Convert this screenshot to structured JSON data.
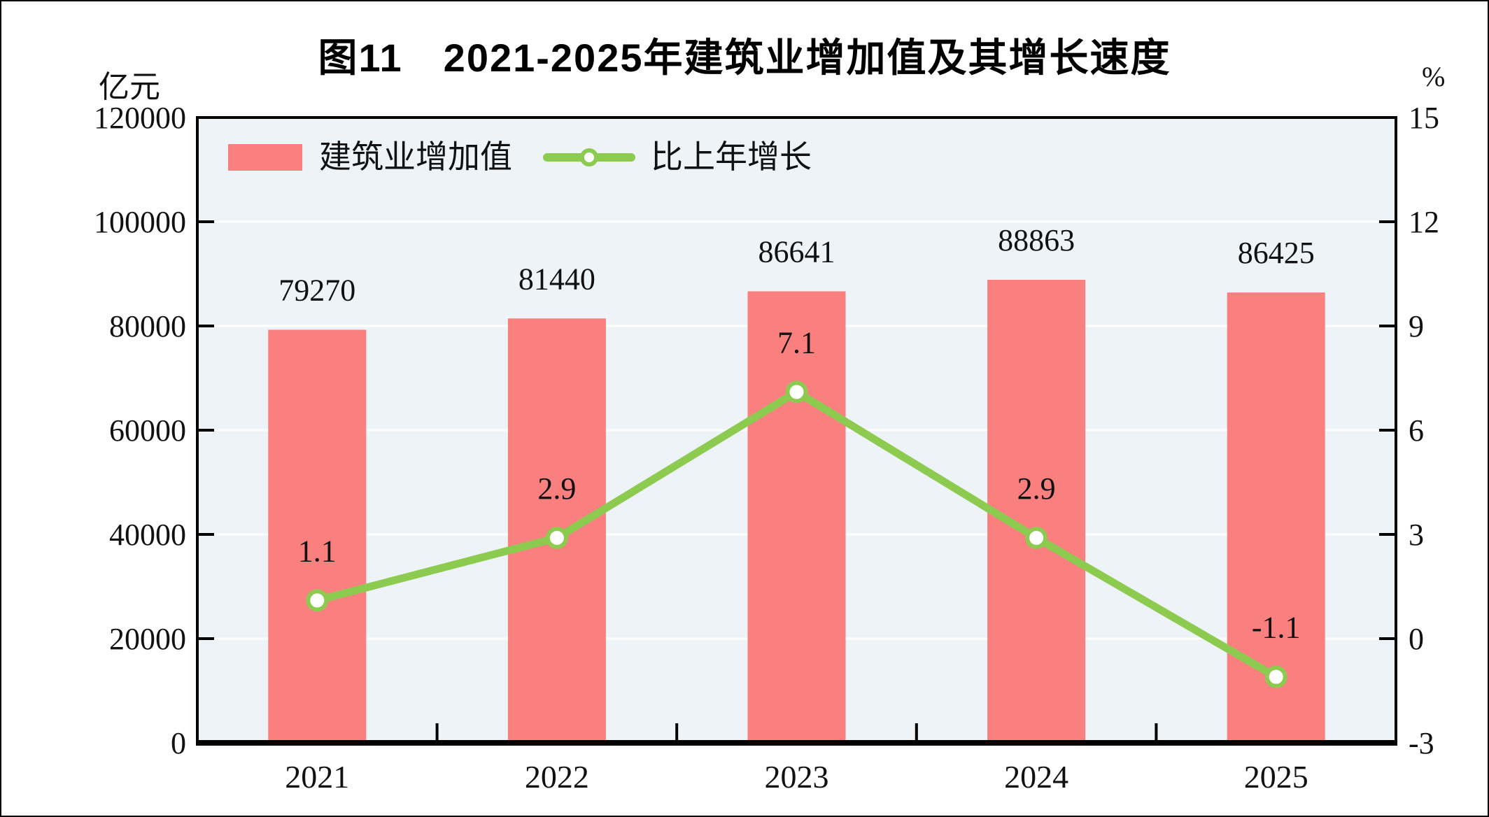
{
  "figure": {
    "title": "图11　2021-2025年建筑业增加值及其增长速度",
    "left_unit": "亿元",
    "right_unit": "%"
  },
  "legend": {
    "bar_label": "建筑业增加值",
    "line_label": "比上年增长"
  },
  "colors": {
    "bar": "#FA7F7F",
    "line": "#8DCB50",
    "marker_fill": "#FFFFFF",
    "plot_bg": "#EDF3F6",
    "gridline": "#FFFFFF",
    "axis": "#000000",
    "text": "#111111"
  },
  "chart_data": {
    "type": "bar",
    "categories": [
      "2021",
      "2022",
      "2023",
      "2024",
      "2025"
    ],
    "series": [
      {
        "name": "建筑业增加值",
        "type": "bar",
        "axis": "left",
        "values": [
          79270,
          81440,
          86641,
          88863,
          86425
        ],
        "labels": [
          "79270",
          "81440",
          "86641",
          "88863",
          "86425"
        ]
      },
      {
        "name": "比上年增长",
        "type": "line",
        "axis": "right",
        "values": [
          1.1,
          2.9,
          7.1,
          2.9,
          -1.1
        ],
        "labels": [
          "1.1",
          "2.9",
          "7.1",
          "2.9",
          "-1.1"
        ]
      }
    ],
    "left_axis": {
      "title": "亿元",
      "min": 0,
      "max": 120000,
      "ticks": [
        0,
        20000,
        40000,
        60000,
        80000,
        100000,
        120000
      ]
    },
    "right_axis": {
      "title": "%",
      "min": -3,
      "max": 15,
      "ticks": [
        -3,
        0,
        3,
        6,
        9,
        12,
        15
      ]
    },
    "grid": true,
    "legend_position": "top-left-inside"
  }
}
